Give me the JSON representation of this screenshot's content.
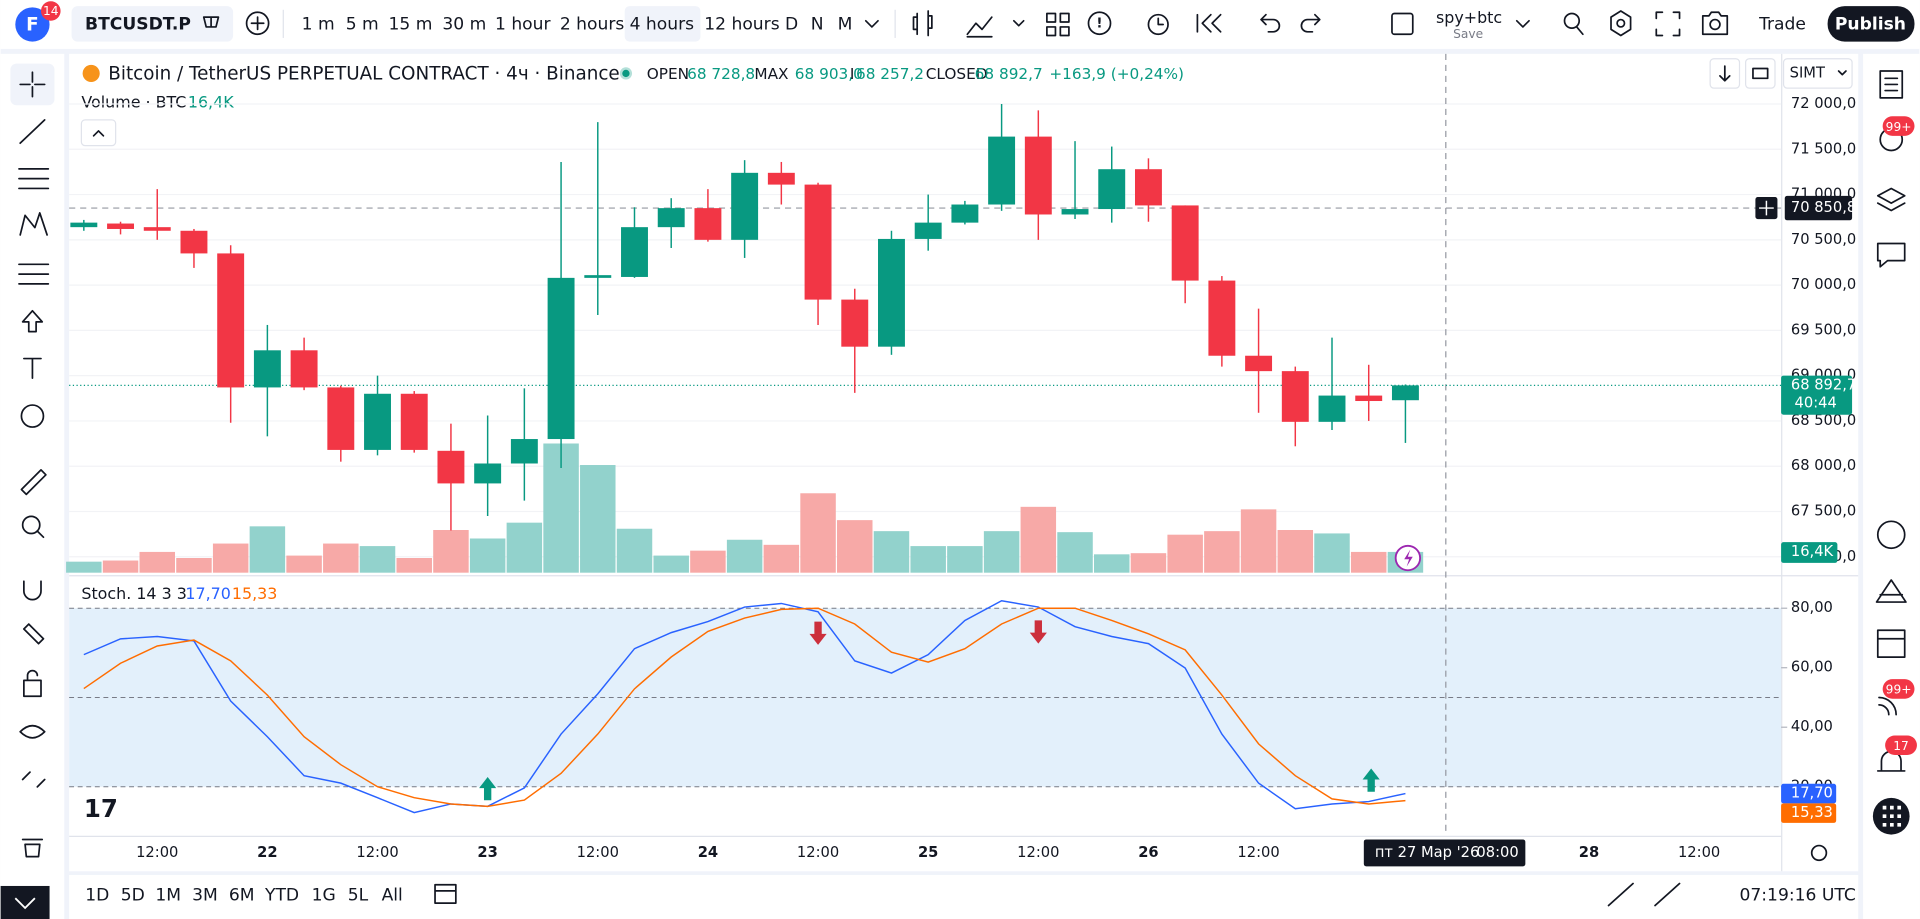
{
  "toolbar": {
    "avatar_badge": "14",
    "symbol": "BTCUSDT.P",
    "intervals": [
      "1 m",
      "5 m",
      "15 m",
      "30 m",
      "1 hour",
      "2 hours",
      "4 hours",
      "12 hours",
      "D",
      "N",
      "M"
    ],
    "active_interval": "4 hours",
    "layout_name": "spy+btc",
    "layout_action": "Save",
    "trade": "Trade",
    "publish": "Publish"
  },
  "legend": {
    "open_label": "OPEN",
    "open": "68 728,8",
    "max_label": "MAX",
    "max": "68 903,0",
    "min_label": "I",
    "min": "68 257,2",
    "close_label": "CLOSED",
    "change": "+163,9 (+0,24%)",
    "scale_mode": "SIMT"
  },
  "chart_data": {
    "type": "candlestick",
    "title": "Bitcoin / TetherUS PERPETUAL CONTRACT · 4ч · Binance",
    "categories": [
      null,
      null,
      "12:00",
      null,
      null,
      "22",
      null,
      null,
      "12:00",
      null,
      null,
      "23",
      null,
      null,
      "12:00",
      null,
      null,
      "24",
      null,
      null,
      "12:00",
      null,
      null,
      "25",
      null,
      null,
      "12:00",
      null,
      null,
      "26",
      null,
      null,
      "12:00",
      null,
      null,
      null,
      null,
      null,
      null,
      null,
      null,
      "28",
      null,
      null,
      "12:00"
    ],
    "open": [
      70640,
      70680,
      70640,
      70600,
      70350,
      68870,
      69280,
      68870,
      68180,
      68800,
      68170,
      67810,
      68030,
      68300,
      70080,
      70090,
      70640,
      70850,
      70500,
      71240,
      71110,
      69840,
      69320,
      70510,
      70690,
      70890,
      71640,
      70780,
      70840,
      71280,
      70880,
      70050,
      69220,
      69050,
      68490,
      68780,
      68728.8,
      null,
      null,
      null,
      null,
      null,
      null,
      null,
      null
    ],
    "high": [
      70720,
      70700,
      71060,
      70620,
      70440,
      69560,
      69420,
      68890,
      69000,
      68830,
      68470,
      68560,
      68860,
      71360,
      71800,
      70860,
      70960,
      71060,
      71380,
      71360,
      71130,
      69960,
      70600,
      71000,
      70930,
      72000,
      71930,
      71590,
      71530,
      71400,
      70880,
      70100,
      69740,
      69100,
      69420,
      69120,
      68903,
      null,
      null,
      null,
      null,
      null,
      null,
      null,
      null
    ],
    "low": [
      70600,
      70560,
      70500,
      70190,
      68480,
      68330,
      68840,
      68050,
      68120,
      68150,
      67290,
      67450,
      67620,
      67980,
      69670,
      70080,
      70410,
      70480,
      70300,
      70890,
      69560,
      68810,
      69230,
      70380,
      70670,
      70820,
      70500,
      70730,
      70690,
      70700,
      69800,
      69100,
      68590,
      68220,
      68400,
      68500,
      68257.2,
      null,
      null,
      null,
      null,
      null,
      null,
      null,
      null
    ],
    "close": [
      70690,
      70620,
      70600,
      70350,
      68870,
      69280,
      68870,
      68180,
      68800,
      68180,
      67810,
      68030,
      68300,
      70080,
      70110,
      70640,
      70850,
      70500,
      71240,
      71110,
      69840,
      69320,
      70510,
      70690,
      70890,
      71640,
      70780,
      70840,
      71280,
      70880,
      70050,
      69220,
      69050,
      68490,
      68780,
      68720,
      68892.7,
      null,
      null,
      null,
      null,
      null,
      null,
      null,
      null
    ],
    "up_color": "#089981",
    "down_color": "#f23645",
    "ylim": [
      66797,
      72527
    ],
    "yticks": [
      {
        "value": 72000,
        "label": "72 000,0"
      },
      {
        "value": 71500,
        "label": "71 500,0"
      },
      {
        "value": 71000,
        "label": "71 000,0"
      },
      {
        "value": 70500,
        "label": "70 500,0"
      },
      {
        "value": 70000,
        "label": "70 000,0"
      },
      {
        "value": 69500,
        "label": "69 500,0"
      },
      {
        "value": 69000,
        "label": "69 000,0"
      },
      {
        "value": 68500,
        "label": "68 500,0"
      },
      {
        "value": 68000,
        "label": "68 000,0"
      },
      {
        "value": 67500,
        "label": "67 500,0"
      },
      {
        "value": 67000,
        "label": "67 000,0"
      }
    ],
    "grid": true,
    "crosshair": {
      "price": {
        "value": 70850.8,
        "label": "70 850,8"
      },
      "date": "пт 27 Мар '26",
      "time": "08:00"
    },
    "last_price": {
      "label": "68 892,7",
      "countdown": "40:44"
    },
    "volume": {
      "name": "Volume · BTC",
      "last_label": "16,4K",
      "values": [
        8.7,
        9.6,
        16.4,
        11.6,
        23,
        36.6,
        13.5,
        23,
        21,
        11.6,
        33.7,
        27,
        39.5,
        102,
        85,
        34.7,
        13.5,
        17.4,
        26,
        22,
        62.7,
        41.5,
        32.8,
        21,
        21,
        32.8,
        52,
        32,
        14.5,
        15.4,
        30,
        32.8,
        50,
        33.7,
        31,
        16.4,
        16.4,
        null,
        null,
        null,
        null,
        null,
        null,
        null,
        null
      ],
      "ylim": [
        0,
        370
      ],
      "up_color": "#92d2cc",
      "down_color": "#f7a9a7"
    },
    "stoch": {
      "name": "Stoch. 14 3 3",
      "ylim": [
        3.5,
        90.3
      ],
      "yticks": [
        {
          "value": 80,
          "label": "80,00"
        },
        {
          "value": 60,
          "label": "60,00"
        },
        {
          "value": 40,
          "label": "40,00"
        },
        {
          "value": 20,
          "label": "20,00"
        }
      ],
      "bands": [
        80,
        50,
        20
      ],
      "band_color": "#e3f0fb",
      "series": [
        {
          "color": "#2962ff",
          "last_label": "17,70",
          "values": [
            64.4,
            69.7,
            70.5,
            69,
            48.8,
            36.8,
            23.7,
            21.2,
            16.3,
            11.3,
            14.2,
            13.4,
            19.6,
            37.7,
            51.2,
            66.4,
            71.8,
            75.5,
            80.4,
            81.6,
            78.8,
            62.3,
            58.2,
            64.4,
            75.9,
            82.5,
            80.4,
            73.8,
            70.5,
            68.1,
            59.9,
            37.7,
            21.2,
            12.6,
            14.2,
            15,
            17.7,
            null,
            null,
            null,
            null,
            null,
            null,
            null,
            null
          ]
        },
        {
          "color": "#ff6d00",
          "last_label": "15,33",
          "values": [
            53,
            61.5,
            67.3,
            69.3,
            62.3,
            50.8,
            36.8,
            27.4,
            20,
            16.3,
            14.2,
            13.4,
            15.5,
            24.5,
            37.7,
            52.9,
            63.6,
            72.2,
            76.7,
            79.6,
            80,
            74.7,
            65.2,
            61.9,
            66.4,
            74.7,
            80,
            80,
            75.9,
            71.4,
            66,
            50.8,
            34.4,
            23.7,
            15.9,
            14.2,
            15.33,
            null,
            null,
            null,
            null,
            null,
            null,
            null,
            null
          ]
        }
      ]
    }
  },
  "bottom_bar": {
    "ranges": [
      "1D",
      "5D",
      "1M",
      "3M",
      "6M",
      "YTD",
      "1G",
      "5L",
      "All"
    ],
    "clock": "07:19:16 UTC"
  },
  "sidebar": {
    "badges": [
      "99+",
      "99+",
      "17"
    ]
  }
}
